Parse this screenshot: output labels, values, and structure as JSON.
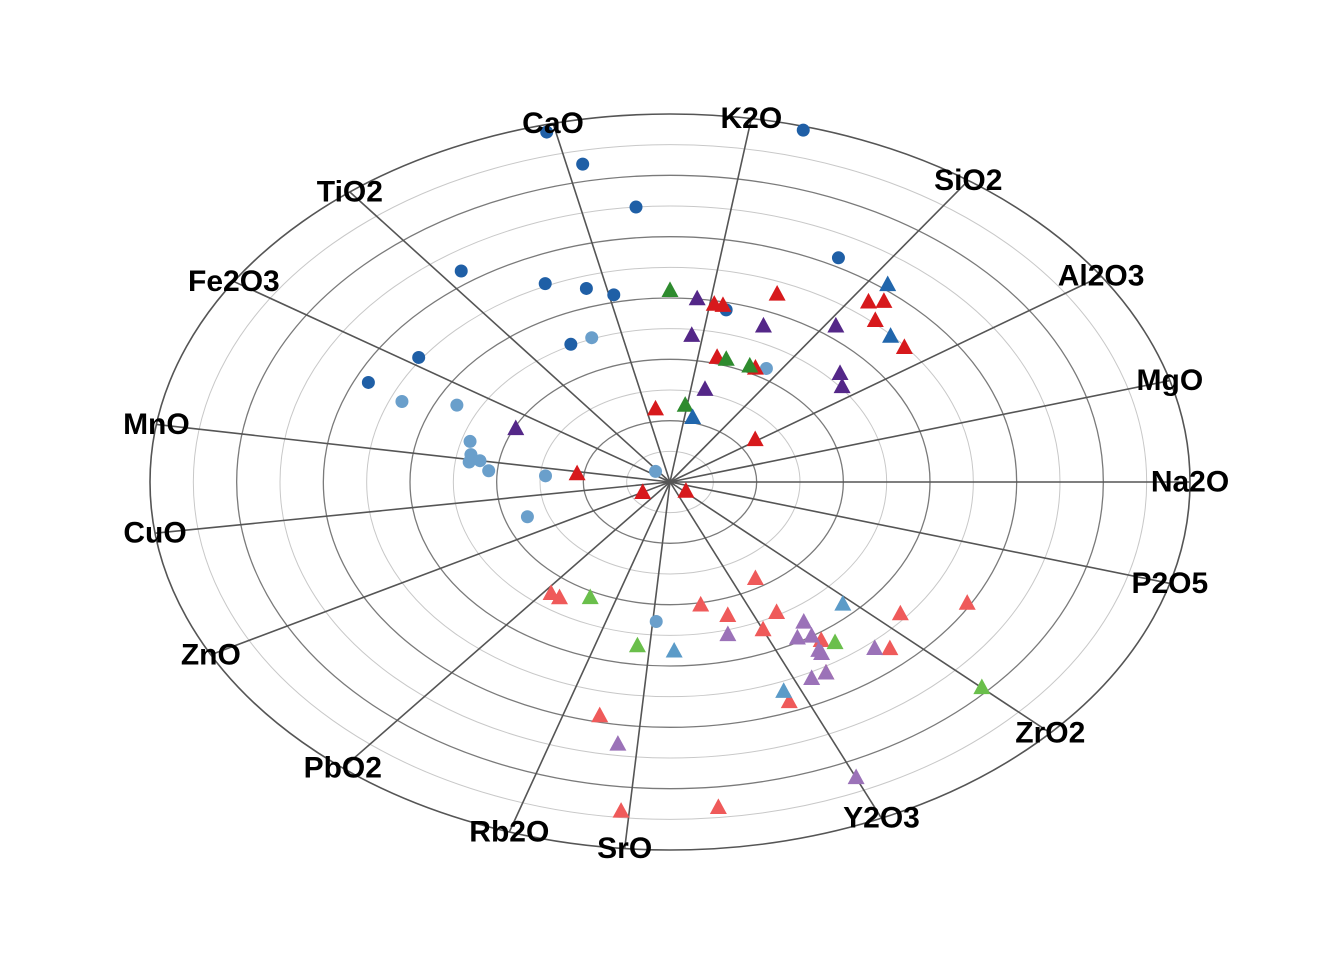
{
  "chart_data": {
    "type": "scatter",
    "subtype": "radial-compositional-scatter",
    "axes": [
      "Na2O",
      "MgO",
      "Al2O3",
      "SiO2",
      "K2O",
      "CaO",
      "TiO2",
      "Fe2O3",
      "MnO",
      "CuO",
      "ZnO",
      "PbO2",
      "Rb2O",
      "SrO",
      "Y2O3",
      "ZrO2",
      "P2O5"
    ],
    "axis_angles_deg": [
      0,
      16,
      34,
      55,
      81,
      103,
      128,
      147,
      171,
      188,
      208,
      231,
      252,
      265,
      294,
      317,
      344
    ],
    "radius_range": [
      0,
      1
    ],
    "grid": true,
    "legend": "none",
    "series": [
      {
        "marker": "circle",
        "color": "#1f5fa6",
        "points": [
          {
            "angle": 104,
            "r": 0.98
          },
          {
            "angle": 101,
            "r": 0.88
          },
          {
            "angle": 75,
            "r": 0.99
          },
          {
            "angle": 95,
            "r": 0.75
          },
          {
            "angle": 125,
            "r": 0.7
          },
          {
            "angle": 62,
            "r": 0.69
          },
          {
            "angle": 114,
            "r": 0.59
          },
          {
            "angle": 107,
            "r": 0.55
          },
          {
            "angle": 102,
            "r": 0.52
          },
          {
            "angle": 77,
            "r": 0.48
          },
          {
            "angle": 117,
            "r": 0.42
          },
          {
            "angle": 145,
            "r": 0.59
          },
          {
            "angle": 155,
            "r": 0.64
          }
        ]
      },
      {
        "marker": "circle",
        "color": "#6a9fcb",
        "points": [
          {
            "angle": 111,
            "r": 0.42
          },
          {
            "angle": 59,
            "r": 0.36
          },
          {
            "angle": 153,
            "r": 0.46
          },
          {
            "angle": 157,
            "r": 0.56
          },
          {
            "angle": 164,
            "r": 0.4
          },
          {
            "angle": 169,
            "r": 0.39
          },
          {
            "angle": 172,
            "r": 0.39
          },
          {
            "angle": 171,
            "r": 0.37
          },
          {
            "angle": 175,
            "r": 0.35
          },
          {
            "angle": 176,
            "r": 0.24
          },
          {
            "angle": 134,
            "r": 0.04
          },
          {
            "angle": 199,
            "r": 0.29
          },
          {
            "angle": 266,
            "r": 0.38
          }
        ]
      },
      {
        "marker": "triangle",
        "color": "#d7191c",
        "points": [
          {
            "angle": 80,
            "r": 0.49
          },
          {
            "angle": 78,
            "r": 0.49
          },
          {
            "angle": 68,
            "r": 0.55
          },
          {
            "angle": 52,
            "r": 0.62
          },
          {
            "angle": 48,
            "r": 0.59
          },
          {
            "angle": 50,
            "r": 0.64
          },
          {
            "angle": 39,
            "r": 0.58
          },
          {
            "angle": 62,
            "r": 0.35
          },
          {
            "angle": 75,
            "r": 0.35
          },
          {
            "angle": 98,
            "r": 0.2
          },
          {
            "angle": 35,
            "r": 0.2
          },
          {
            "angle": 173,
            "r": 0.18
          },
          {
            "angle": 209,
            "r": 0.06
          },
          {
            "angle": 320,
            "r": 0.04
          }
        ]
      },
      {
        "marker": "triangle",
        "color": "#542788",
        "points": [
          {
            "angle": 84,
            "r": 0.5
          },
          {
            "angle": 67,
            "r": 0.46
          },
          {
            "angle": 53,
            "r": 0.53
          },
          {
            "angle": 42,
            "r": 0.44
          },
          {
            "angle": 38,
            "r": 0.42
          },
          {
            "angle": 84,
            "r": 0.4
          },
          {
            "angle": 75,
            "r": 0.26
          },
          {
            "angle": 154,
            "r": 0.33
          }
        ]
      },
      {
        "marker": "triangle",
        "color": "#2e8b2e",
        "points": [
          {
            "angle": 90,
            "r": 0.52
          },
          {
            "angle": 72,
            "r": 0.35
          },
          {
            "angle": 64,
            "r": 0.35
          },
          {
            "angle": 82,
            "r": 0.21
          }
        ]
      },
      {
        "marker": "triangle",
        "color": "#2166ac",
        "points": [
          {
            "angle": 52,
            "r": 0.68
          },
          {
            "angle": 43,
            "r": 0.58
          },
          {
            "angle": 76,
            "r": 0.18
          }
        ]
      },
      {
        "marker": "triangle",
        "color": "#ef5a5a",
        "points": [
          {
            "angle": 236,
            "r": 0.38
          },
          {
            "angle": 280,
            "r": 0.34
          },
          {
            "angle": 287,
            "r": 0.38
          },
          {
            "angle": 294,
            "r": 0.44
          },
          {
            "angle": 302,
            "r": 0.31
          },
          {
            "angle": 300,
            "r": 0.41
          },
          {
            "angle": 304,
            "r": 0.52
          },
          {
            "angle": 321,
            "r": 0.57
          },
          {
            "angle": 330,
            "r": 0.66
          },
          {
            "angle": 313,
            "r": 0.62
          },
          {
            "angle": 300,
            "r": 0.6
          },
          {
            "angle": 291,
            "r": 0.64
          },
          {
            "angle": 276,
            "r": 0.89
          },
          {
            "angle": 264,
            "r": 0.9
          },
          {
            "angle": 258,
            "r": 0.65
          },
          {
            "angle": 233,
            "r": 0.38
          }
        ]
      },
      {
        "marker": "triangle",
        "color": "#9b72b8",
        "points": [
          {
            "angle": 285,
            "r": 0.43
          },
          {
            "angle": 304,
            "r": 0.46
          },
          {
            "angle": 303,
            "r": 0.5
          },
          {
            "angle": 302,
            "r": 0.54
          },
          {
            "angle": 297,
            "r": 0.6
          },
          {
            "angle": 300,
            "r": 0.6
          },
          {
            "angle": 311,
            "r": 0.6
          },
          {
            "angle": 262,
            "r": 0.72
          },
          {
            "angle": 294,
            "r": 0.88
          },
          {
            "angle": 300,
            "r": 0.49
          },
          {
            "angle": 302,
            "r": 0.55
          }
        ]
      },
      {
        "marker": "triangle",
        "color": "#6abf4b",
        "points": [
          {
            "angle": 244,
            "r": 0.35
          },
          {
            "angle": 262,
            "r": 0.45
          },
          {
            "angle": 306,
            "r": 0.54
          },
          {
            "angle": 317,
            "r": 0.82
          }
        ]
      },
      {
        "marker": "triangle",
        "color": "#5b9bc8",
        "points": [
          {
            "angle": 271,
            "r": 0.46
          },
          {
            "angle": 315,
            "r": 0.47
          },
          {
            "angle": 291,
            "r": 0.61
          }
        ]
      }
    ]
  }
}
